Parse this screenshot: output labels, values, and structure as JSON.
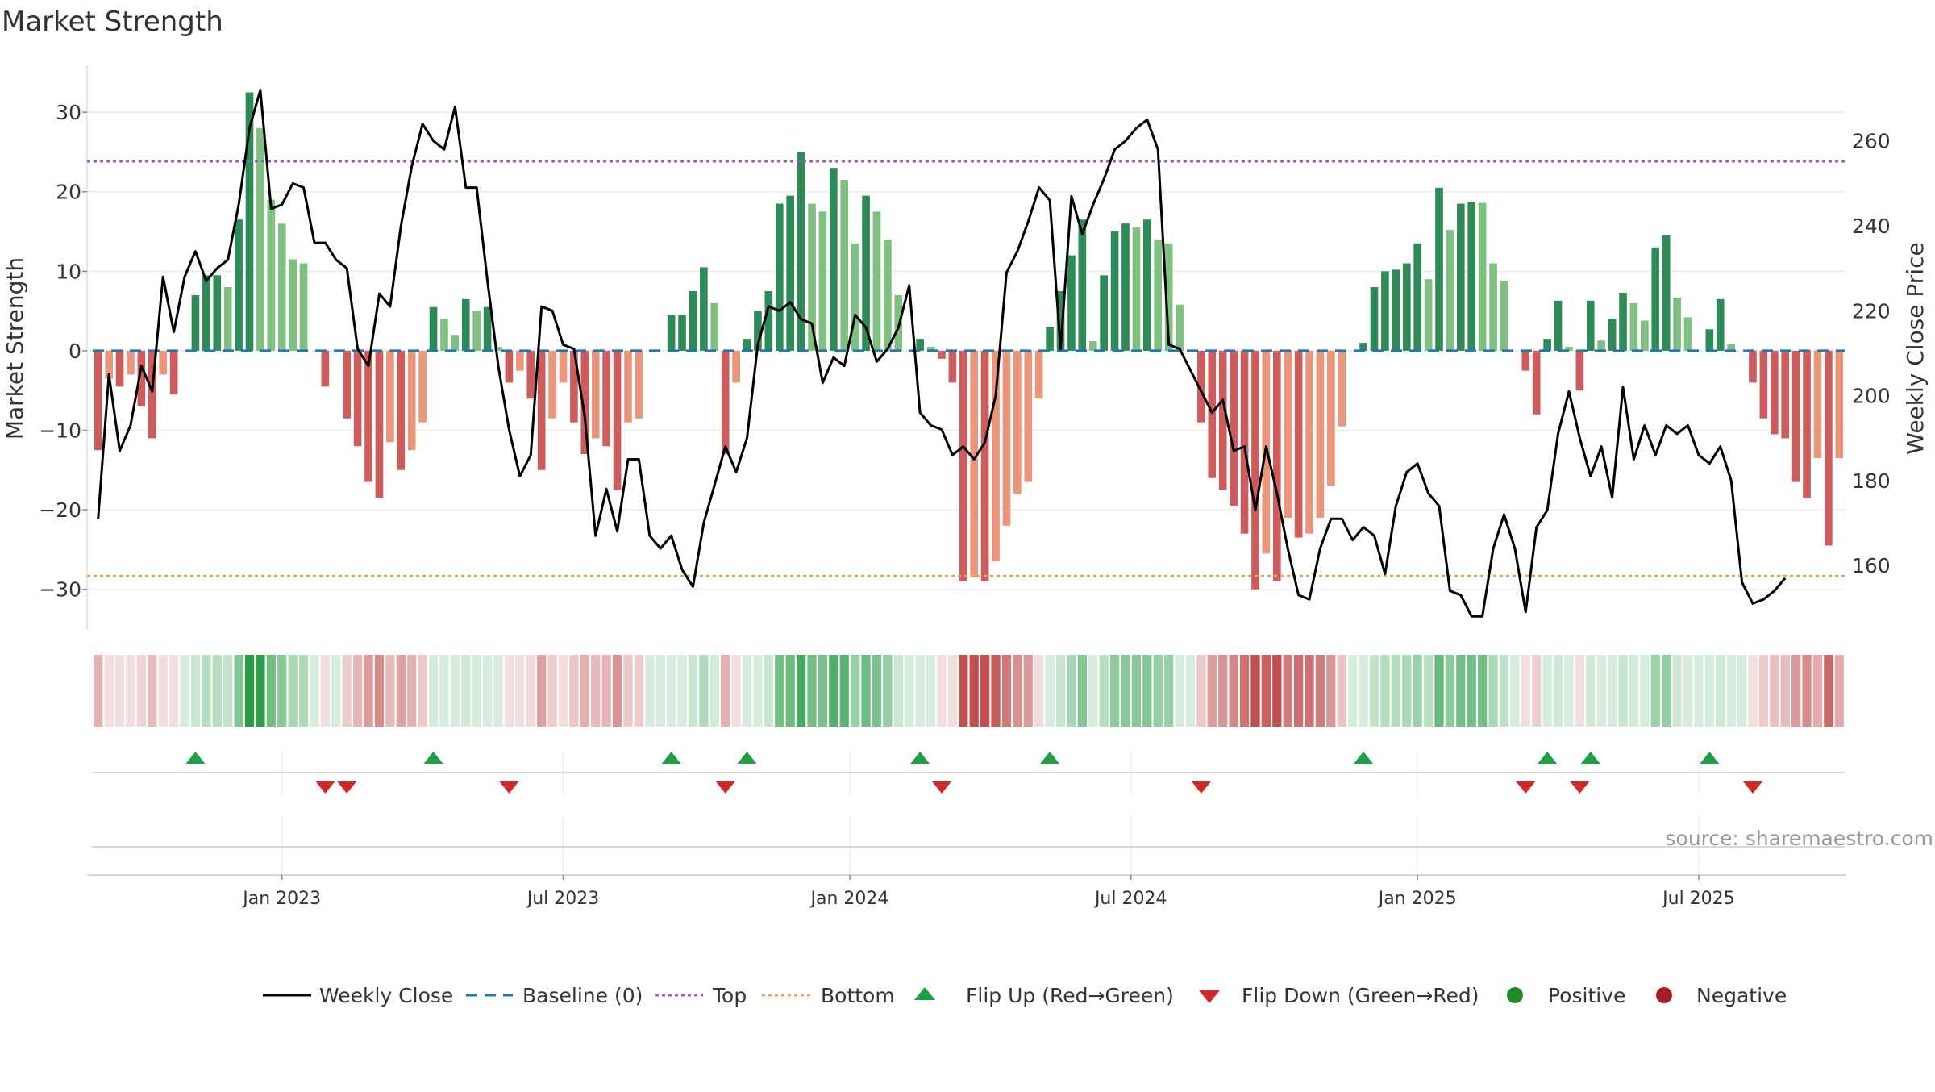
{
  "chart_data": {
    "type": "bar",
    "title": "Market Strength",
    "ylabel_left": "Market Strength",
    "ylabel_right": "Weekly Close Price",
    "source": "source: sharemaestro.com",
    "yticks_left": [
      30,
      20,
      10,
      0,
      -10,
      -20,
      -30
    ],
    "yticks_left_labels": [
      "30",
      "20",
      "10",
      "0",
      "−10",
      "−20",
      "−30"
    ],
    "yticks_right": [
      260,
      240,
      220,
      200,
      180,
      160
    ],
    "ylim_left": [
      -35,
      36
    ],
    "ylim_right": [
      145,
      278
    ],
    "top_level": 23.8,
    "bottom_level": -28.3,
    "x_ticks": [
      {
        "label": "Jan 2023",
        "week": 17
      },
      {
        "label": "Jul 2023",
        "week": 43
      },
      {
        "label": "Jan 2024",
        "week": 69.5
      },
      {
        "label": "Jul 2024",
        "week": 95.5
      },
      {
        "label": "Jan 2025",
        "week": 122
      },
      {
        "label": "Jul 2025",
        "week": 148
      }
    ],
    "strength": [
      -12.5,
      -3.5,
      -4.5,
      -3,
      -7,
      -11,
      -3,
      -5.5,
      0,
      7,
      9.5,
      9.5,
      8,
      16.5,
      32.5,
      28,
      19,
      16,
      11.5,
      11,
      0,
      -4.5,
      0,
      -8.5,
      -12,
      -16.5,
      -18.5,
      -11.5,
      -15,
      -12.5,
      -9,
      5.5,
      4,
      2,
      6.5,
      5,
      5.5,
      0.5,
      -4,
      -2.5,
      -6,
      -15,
      -8.5,
      -4,
      -9,
      -13,
      -11,
      -12,
      -17.5,
      -9,
      -8.5,
      0,
      0,
      4.5,
      4.5,
      7.5,
      10.5,
      6,
      -13,
      -4,
      1.5,
      5,
      7.5,
      18.5,
      19.5,
      25,
      18.5,
      17.5,
      23,
      21.5,
      13.5,
      19.5,
      17.5,
      14,
      7,
      0,
      1.5,
      0.5,
      -1,
      -4,
      -29,
      -28.5,
      -29,
      -26.5,
      -22,
      -18,
      -16.5,
      -6,
      3,
      7.5,
      12,
      16.5,
      1.2,
      9.5,
      15,
      16,
      15.5,
      16.5,
      14,
      13.5,
      5.8,
      0,
      -9,
      -16,
      -17.5,
      -19.5,
      -23,
      -30,
      -25.5,
      -29,
      -21,
      -23.5,
      -23,
      -21,
      -17,
      -9.5,
      0,
      1,
      8,
      10,
      10.2,
      11,
      13.5,
      9,
      20.5,
      15.2,
      18.5,
      18.7,
      18.6,
      11,
      8.8,
      0,
      -2.5,
      -8,
      1.5,
      6.3,
      0.5,
      -5,
      6.3,
      1.3,
      4,
      7.3,
      6,
      3.8,
      13,
      14.5,
      6.7,
      4.2,
      0,
      2.7,
      6.5,
      0.8,
      0,
      -4,
      -8.5,
      -10.5,
      -11,
      -16.5,
      -18.5,
      -13.5,
      -24.5,
      -13.5
    ],
    "weekly_close": [
      171,
      205,
      187,
      193,
      207,
      201,
      228,
      215,
      228,
      234,
      227,
      230,
      232,
      245,
      263,
      272,
      244,
      245,
      250,
      249,
      236,
      236,
      232,
      230,
      211,
      207,
      224,
      221,
      240,
      254,
      264,
      260,
      258,
      268,
      249,
      249,
      227,
      207,
      192,
      181,
      186,
      221,
      220,
      212,
      211,
      195,
      167,
      178,
      168,
      185,
      185,
      167,
      164,
      167,
      159,
      155,
      170,
      179,
      188,
      182,
      190,
      212,
      221,
      220,
      222,
      218,
      217,
      203,
      209,
      207,
      219,
      216,
      208,
      211,
      216,
      226,
      196,
      193,
      192,
      186,
      188,
      185,
      189,
      200,
      229,
      234,
      241,
      249,
      246,
      211,
      247,
      238,
      245,
      251,
      258,
      260,
      263,
      265,
      258,
      212,
      211,
      206,
      201,
      196,
      199,
      187,
      188,
      173,
      188,
      177,
      164,
      153,
      152,
      164,
      171,
      171,
      166,
      169,
      167,
      158,
      174,
      182,
      184,
      177,
      174,
      154,
      153,
      148,
      148,
      164,
      172,
      164,
      149,
      169,
      173,
      191,
      201,
      190,
      181,
      188,
      176,
      202,
      185,
      193,
      186,
      193,
      191,
      193,
      186,
      184,
      188,
      180,
      156,
      151,
      152,
      154,
      157
    ]
  },
  "legend": {
    "weekly_close": "Weekly Close",
    "baseline": "Baseline (0)",
    "top": "Top",
    "bottom": "Bottom",
    "flip_up": "Flip Up (Red→Green)",
    "flip_down": "Flip Down (Green→Red)",
    "positive": "Positive",
    "negative": "Negative"
  },
  "colors": {
    "pos_dark": "#2e8b57",
    "pos_light": "#7fbf7f",
    "neg_dark": "#cd5c5c",
    "neg_light": "#e9967a",
    "top": "#9a59c9",
    "bottom": "#f0a060",
    "baseline": "#1f77b4",
    "close_line": "#000000",
    "flip_up": "#1e9e45",
    "flip_down": "#d62728",
    "positive": "#1e8b2a",
    "negative": "#a51f24"
  }
}
